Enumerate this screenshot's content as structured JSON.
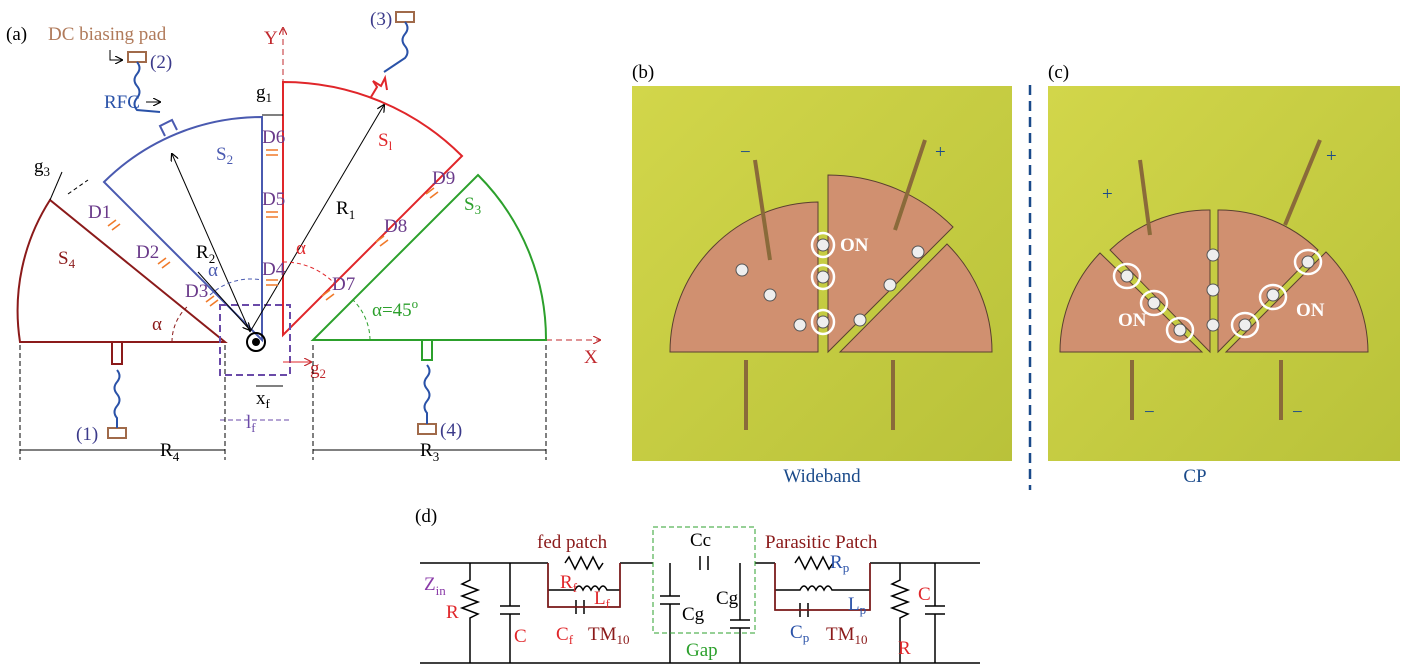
{
  "panel_a": {
    "label": "(a)",
    "dc_pad": "DC biasing pad",
    "port_1": "(1)",
    "port_2": "(2)",
    "port_3": "(3)",
    "port_4": "(4)",
    "rfc": "RFC",
    "y_axis": "Y",
    "x_axis": "X",
    "s1": {
      "main": "S",
      "sub": "l"
    },
    "s2": {
      "main": "S",
      "sub": "2"
    },
    "s3": {
      "main": "S",
      "sub": "3"
    },
    "s4": {
      "main": "S",
      "sub": "4"
    },
    "r1": {
      "main": "R",
      "sub": "1"
    },
    "r2": {
      "main": "R",
      "sub": "2"
    },
    "r3": {
      "main": "R",
      "sub": "3"
    },
    "r4": {
      "main": "R",
      "sub": "4"
    },
    "g1": {
      "main": "g",
      "sub": "1"
    },
    "g2": {
      "main": "g",
      "sub": "2"
    },
    "g3": {
      "main": "g",
      "sub": "3"
    },
    "xf": {
      "main": "x",
      "sub": "f"
    },
    "lf": {
      "main": "l",
      "sub": "f"
    },
    "diodes": [
      "D1",
      "D2",
      "D3",
      "D4",
      "D5",
      "D6",
      "D7",
      "D8",
      "D9"
    ],
    "alphas": [
      "α",
      "α",
      "α"
    ],
    "alpha_45": {
      "main": "α=45",
      "sup": "o"
    }
  },
  "panel_b": {
    "label": "(b)",
    "minus": "−",
    "plus": "+",
    "on": "ON",
    "caption": "Wideband"
  },
  "panel_c": {
    "label": "(c)",
    "signs": [
      "+",
      "+",
      "−",
      "−"
    ],
    "on_left": "ON",
    "on_right": "ON",
    "caption": "CP"
  },
  "panel_d": {
    "label": "(d)",
    "fed_patch": "fed patch",
    "parasitic_patch": "Parasitic Patch",
    "zin": {
      "main": "Z",
      "sub": "in"
    },
    "r_left": "R",
    "c_left": "C",
    "rf": {
      "main": "R",
      "sub": "f"
    },
    "lf": {
      "main": "L",
      "sub": "f"
    },
    "cf": {
      "main": "C",
      "sub": "f"
    },
    "tm_fed": {
      "main": "TM",
      "sub": "10"
    },
    "cc": "Cc",
    "cg_left": "Cg",
    "cg_right": "Cg",
    "gap": "Gap",
    "rp": {
      "main": "R",
      "sub": "p"
    },
    "lp": {
      "main": "L",
      "sub": "p"
    },
    "cp": {
      "main": "C",
      "sub": "p"
    },
    "tm_par": {
      "main": "TM",
      "sub": "10"
    },
    "c_right": "C",
    "r_right": "R"
  }
}
